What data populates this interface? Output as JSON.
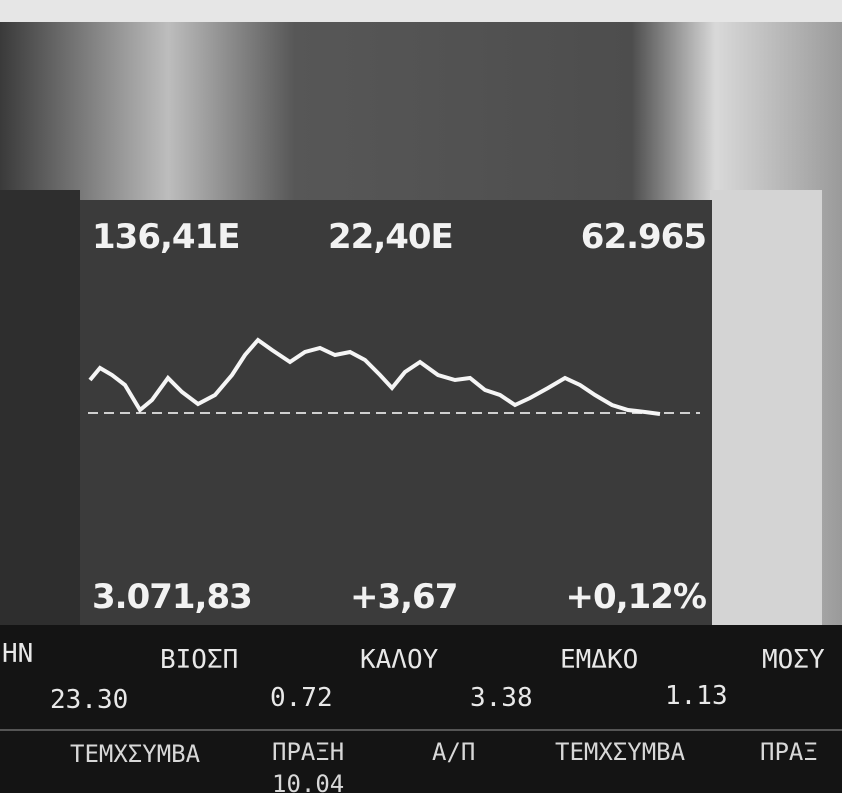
{
  "screen": {
    "top_labels": [
      "136,41E",
      "22,40E",
      "62.965"
    ],
    "bottom_labels": [
      "3.071,83",
      "+3,67",
      "+0,12%"
    ]
  },
  "ticker": {
    "symbols": [
      "ΗΝ",
      "ΒΙΟΣΠ",
      "ΚΑΛΟΥ",
      "ΕΜΔΚΟ",
      "ΜΟΣΥ"
    ],
    "prices": [
      "23.30",
      "0.72",
      "3.38",
      "1.13"
    ],
    "headers": [
      "ΤΕΜΧΣΥΜΒΑ",
      "ΠΡΑΞΗ",
      "Α/Π",
      "ΤΕΜΧΣΥΜΒΑ",
      "ΠΡΑΞ"
    ],
    "bottom_row": [
      "10.04"
    ]
  }
}
